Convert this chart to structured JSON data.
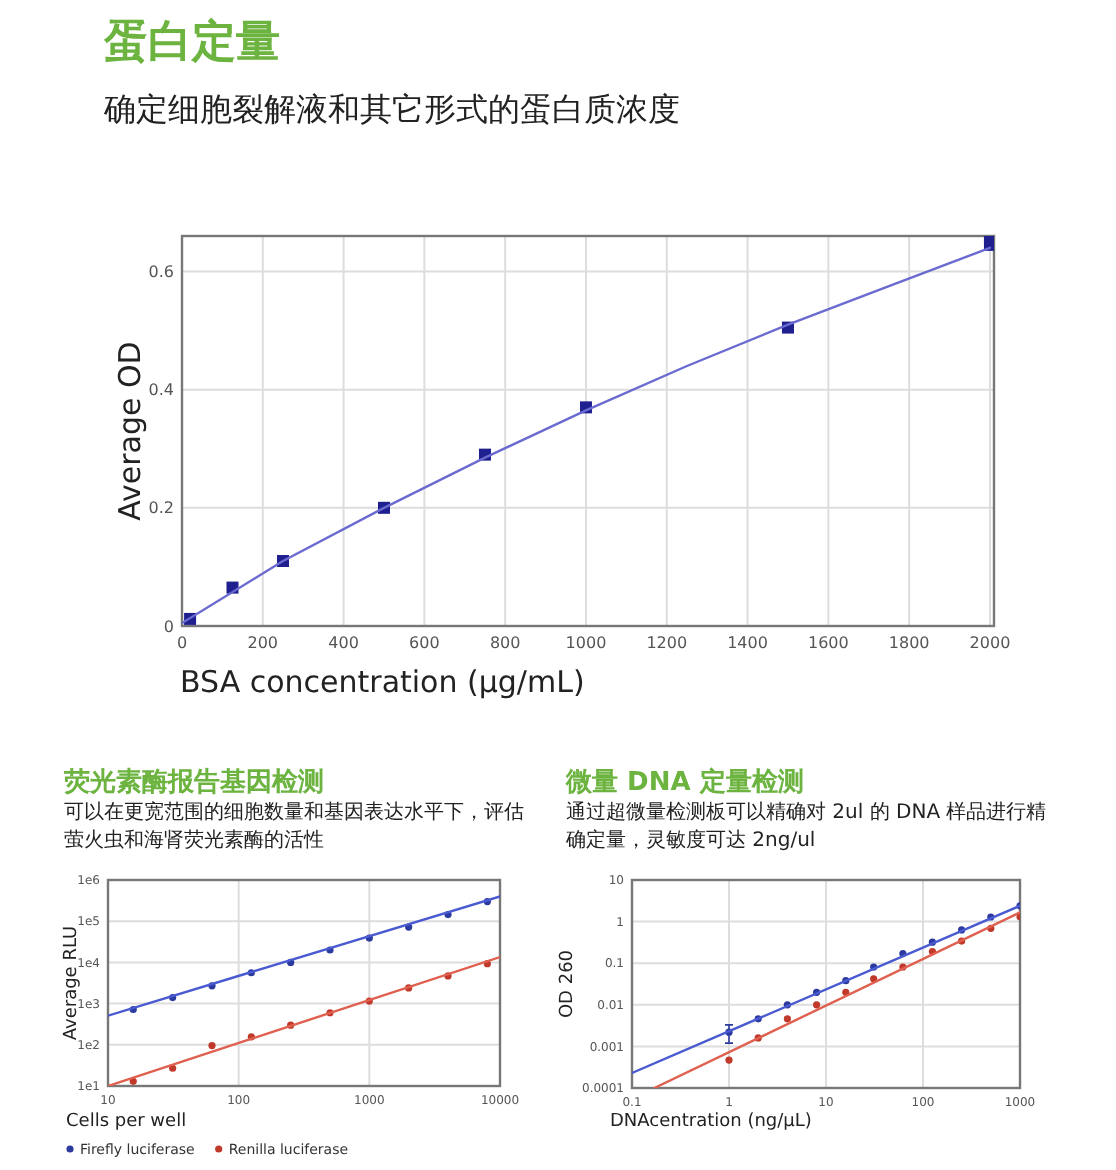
{
  "chart_data": [
    {
      "type": "scatter",
      "title": "蛋白定量",
      "subtitle": "确定细胞裂解液和其它形式的蛋白质浓度",
      "xlabel": "BSA concentration (µg/mL)",
      "ylabel": "Average OD",
      "xlim": [
        0,
        2010
      ],
      "ylim": [
        0,
        0.66
      ],
      "xticks": [
        0,
        200,
        400,
        600,
        800,
        1000,
        1200,
        1400,
        1600,
        1800,
        2000
      ],
      "yticks": [
        0,
        0.2,
        0.4,
        0.6
      ],
      "grid": true,
      "series": [
        {
          "type": "scatter",
          "color": "#1f1f8f",
          "marker": "square",
          "x": [
            20,
            125,
            250,
            500,
            750,
            1000,
            1500,
            2000,
            2000
          ],
          "values": [
            0.012,
            0.065,
            0.11,
            0.2,
            0.29,
            0.37,
            0.505,
            0.645,
            0.655
          ]
        },
        {
          "type": "line",
          "color": "#6a6ad0",
          "x": [
            0,
            250,
            500,
            750,
            1000,
            1250,
            1500,
            1750,
            2000
          ],
          "values": [
            0.005,
            0.11,
            0.2,
            0.285,
            0.365,
            0.44,
            0.51,
            0.575,
            0.64
          ]
        }
      ]
    },
    {
      "type": "scatter",
      "title": "荧光素酶报告基因检测",
      "subtitle": "可以在更宽范围的细胞数量和基因表达水平下，评估萤火虫和海肾荧光素酶的活性",
      "xlabel": "Cells per well",
      "ylabel": "Average RLU",
      "log": "xy",
      "xlim": [
        10,
        10000
      ],
      "ylim": [
        10,
        1000000
      ],
      "xticks": [
        10,
        100,
        1000,
        10000
      ],
      "yticks": [
        {
          "value": 10,
          "label": "1e1"
        },
        {
          "value": 100,
          "label": "1e2"
        },
        {
          "value": 1000,
          "label": "1e3"
        },
        {
          "value": 10000,
          "label": "1e4"
        },
        {
          "value": 100000,
          "label": "1e5"
        },
        {
          "value": 1000000,
          "label": "1e6"
        }
      ],
      "grid": true,
      "legend": "bottom",
      "series": [
        {
          "type": "scatter",
          "name": "Firefly luciferase",
          "color": "#2b3a9e",
          "marker": "circle",
          "x": [
            15.6,
            31.25,
            62.5,
            125,
            250,
            500,
            1000,
            2000,
            4000,
            8000
          ],
          "values": [
            720,
            1400,
            2700,
            5600,
            10000,
            20000,
            39000,
            72000,
            145000,
            300000
          ]
        },
        {
          "type": "scatter",
          "name": "Renilla luciferase",
          "color": "#c0392b",
          "marker": "circle",
          "x": [
            15.6,
            31.25,
            62.5,
            125,
            250,
            500,
            1000,
            2000,
            4000,
            8000
          ],
          "values": [
            13,
            27,
            96,
            155,
            300,
            600,
            1150,
            2400,
            4700,
            9300
          ]
        },
        {
          "type": "line",
          "color": "#4a5ad0",
          "x": [
            10,
            10000
          ],
          "values": [
            510,
            400000
          ]
        },
        {
          "type": "line",
          "color": "#e06050",
          "x": [
            10,
            10000
          ],
          "values": [
            10,
            13500
          ]
        }
      ]
    },
    {
      "type": "scatter",
      "title": "微量 DNA 定量检测",
      "subtitle": "通过超微量检测板可以精确对 2ul 的 DNA 样品进行精确定量，灵敏度可达 2ng/ul",
      "xlabel": "DNAcentration (ng/µL)",
      "ylabel": "OD 260",
      "log": "xy",
      "xlim": [
        0.1,
        1000
      ],
      "ylim": [
        0.0001,
        10
      ],
      "xticks": [
        0.1,
        1,
        10,
        100,
        1000
      ],
      "yticks": [
        0.0001,
        0.001,
        0.01,
        0.1,
        1,
        10
      ],
      "grid": true,
      "series": [
        {
          "type": "scatter",
          "color": "#2b3a9e",
          "marker": "circle",
          "x": [
            1,
            2,
            4,
            8,
            16,
            31,
            62,
            125,
            250,
            500,
            1000
          ],
          "values": [
            0.0022,
            0.0046,
            0.01,
            0.02,
            0.038,
            0.081,
            0.17,
            0.32,
            0.63,
            1.29,
            2.4
          ],
          "errors": [
            [
              0.001,
              0.0011
            ],
            null,
            null,
            null,
            null,
            null,
            null,
            null,
            null,
            null,
            null
          ]
        },
        {
          "type": "scatter",
          "color": "#c0392b",
          "marker": "circle",
          "x": [
            1,
            2,
            4,
            8,
            16,
            31,
            62,
            125,
            250,
            500,
            1000
          ],
          "values": [
            0.00047,
            0.0016,
            0.0046,
            0.01,
            0.02,
            0.042,
            0.081,
            0.19,
            0.34,
            0.69,
            1.3
          ]
        },
        {
          "type": "line",
          "color": "#4a5ad0",
          "x": [
            0.1,
            1000
          ],
          "values": [
            0.00023,
            2.4
          ]
        },
        {
          "type": "line",
          "color": "#e06050",
          "x": [
            0.17,
            1000
          ],
          "values": [
            0.0001,
            1.66
          ]
        }
      ]
    }
  ]
}
